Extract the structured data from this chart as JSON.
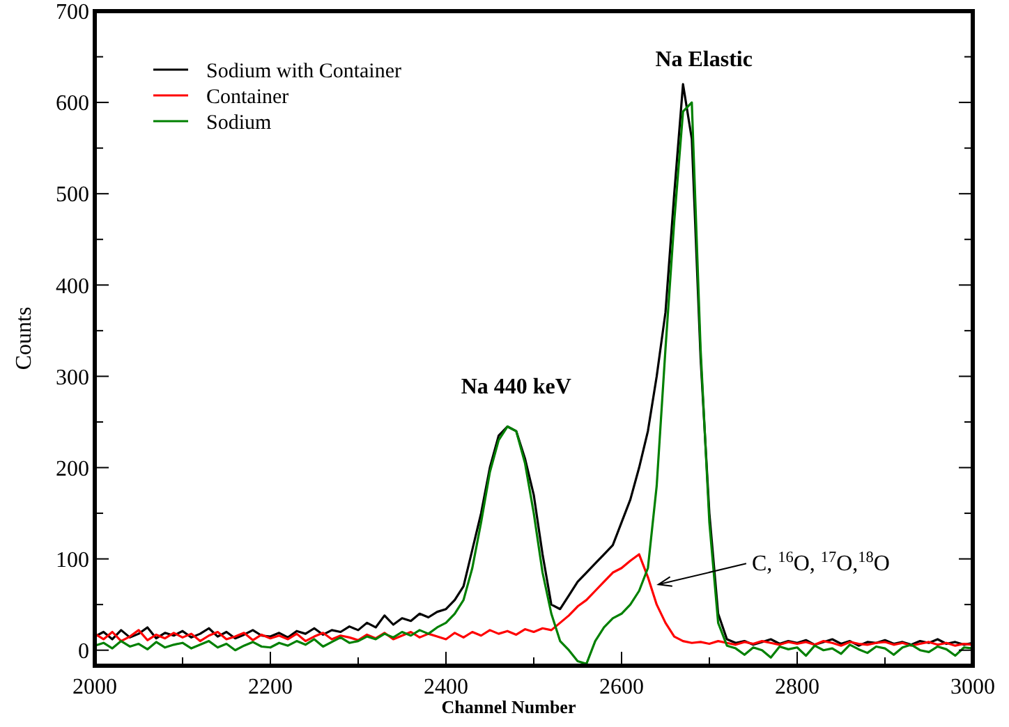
{
  "chart_data": {
    "type": "line",
    "xlabel": "Channel Number",
    "ylabel": "Counts",
    "x": [
      2000,
      2010,
      2020,
      2030,
      2040,
      2050,
      2060,
      2070,
      2080,
      2090,
      2100,
      2110,
      2120,
      2130,
      2140,
      2150,
      2160,
      2170,
      2180,
      2190,
      2200,
      2210,
      2220,
      2230,
      2240,
      2250,
      2260,
      2270,
      2280,
      2290,
      2300,
      2310,
      2320,
      2330,
      2340,
      2350,
      2360,
      2370,
      2380,
      2390,
      2400,
      2410,
      2420,
      2430,
      2440,
      2450,
      2460,
      2470,
      2480,
      2490,
      2500,
      2510,
      2520,
      2530,
      2540,
      2550,
      2560,
      2570,
      2580,
      2590,
      2600,
      2610,
      2620,
      2630,
      2640,
      2650,
      2660,
      2670,
      2680,
      2690,
      2700,
      2710,
      2720,
      2730,
      2740,
      2750,
      2760,
      2770,
      2780,
      2790,
      2800,
      2810,
      2820,
      2830,
      2840,
      2850,
      2860,
      2870,
      2880,
      2890,
      2900,
      2910,
      2920,
      2930,
      2940,
      2950,
      2960,
      2970,
      2980,
      2990,
      3000
    ],
    "series": [
      {
        "name": "Sodium with Container",
        "color": "#000000",
        "values": [
          15,
          20,
          12,
          22,
          14,
          18,
          25,
          13,
          19,
          16,
          21,
          14,
          18,
          24,
          15,
          20,
          13,
          17,
          22,
          16,
          15,
          19,
          14,
          21,
          18,
          24,
          17,
          22,
          20,
          26,
          22,
          30,
          25,
          38,
          28,
          35,
          32,
          40,
          36,
          42,
          45,
          55,
          70,
          110,
          150,
          200,
          235,
          245,
          240,
          210,
          170,
          105,
          50,
          45,
          60,
          75,
          85,
          95,
          105,
          115,
          140,
          165,
          200,
          240,
          300,
          370,
          500,
          620,
          560,
          320,
          150,
          40,
          12,
          8,
          10,
          6,
          9,
          12,
          7,
          10,
          8,
          11,
          6,
          9,
          12,
          7,
          10,
          5,
          9,
          8,
          11,
          7,
          9,
          6,
          10,
          8,
          12,
          7,
          9,
          6,
          8
        ]
      },
      {
        "name": "Container",
        "color": "#ff0000",
        "values": [
          18,
          12,
          20,
          10,
          15,
          22,
          11,
          17,
          13,
          19,
          14,
          18,
          10,
          16,
          20,
          12,
          15,
          19,
          11,
          17,
          13,
          16,
          12,
          18,
          10,
          15,
          19,
          12,
          16,
          14,
          11,
          17,
          13,
          19,
          12,
          16,
          20,
          14,
          18,
          15,
          12,
          19,
          14,
          20,
          16,
          22,
          18,
          21,
          17,
          23,
          20,
          24,
          22,
          30,
          38,
          48,
          55,
          65,
          75,
          85,
          90,
          98,
          105,
          80,
          50,
          30,
          15,
          10,
          8,
          9,
          7,
          10,
          8,
          6,
          9,
          7,
          10,
          8,
          6,
          9,
          7,
          9,
          6,
          10,
          8,
          5,
          9,
          7,
          6,
          8,
          9,
          6,
          8,
          5,
          7,
          9,
          6,
          8,
          5,
          7,
          6
        ]
      },
      {
        "name": "Sodium",
        "color": "#008000",
        "values": [
          5,
          8,
          2,
          10,
          4,
          7,
          1,
          9,
          3,
          6,
          8,
          2,
          6,
          10,
          3,
          7,
          0,
          5,
          9,
          4,
          3,
          8,
          5,
          10,
          6,
          12,
          4,
          9,
          14,
          8,
          10,
          15,
          12,
          18,
          14,
          20,
          16,
          22,
          18,
          25,
          30,
          40,
          55,
          90,
          140,
          195,
          230,
          245,
          240,
          205,
          150,
          85,
          40,
          10,
          0,
          -12,
          -15,
          10,
          25,
          35,
          40,
          50,
          65,
          90,
          180,
          330,
          470,
          590,
          600,
          330,
          140,
          30,
          5,
          2,
          -5,
          3,
          0,
          -8,
          4,
          1,
          3,
          -6,
          5,
          0,
          2,
          -4,
          6,
          1,
          -3,
          4,
          2,
          -5,
          3,
          6,
          0,
          -2,
          4,
          1,
          -6,
          3,
          2
        ]
      }
    ],
    "xlim": [
      2000,
      3000
    ],
    "xticks": [
      2000,
      {
        "value": 2100,
        "label": null
      },
      2200,
      {
        "value": 2300,
        "label": null
      },
      2400,
      {
        "value": 2500,
        "label": null
      },
      2600,
      {
        "value": 2700,
        "label": null
      },
      2800,
      {
        "value": 2900,
        "label": null
      },
      3000
    ],
    "ylim": [
      -17,
      700
    ],
    "yticks": [
      0,
      {
        "value": 50,
        "label": null
      },
      100,
      {
        "value": 150,
        "label": null
      },
      200,
      {
        "value": 250,
        "label": null
      },
      300,
      {
        "value": 350,
        "label": null
      },
      400,
      {
        "value": 450,
        "label": null
      },
      500,
      {
        "value": 550,
        "label": null
      },
      600,
      {
        "value": 650,
        "label": null
      },
      700
    ],
    "annotations": [
      {
        "text": "Na 440 keV",
        "x": 2480,
        "y": 245
      },
      {
        "text": "Na Elastic",
        "x": 2670,
        "y": 620
      },
      {
        "text": "C, $^{16}$O, $^{17}$O,$^{18}$O",
        "x": 2642,
        "y": 72
      }
    ],
    "legend": "top left",
    "grid": false,
    "marker": "none",
    "line_style": "solid"
  }
}
